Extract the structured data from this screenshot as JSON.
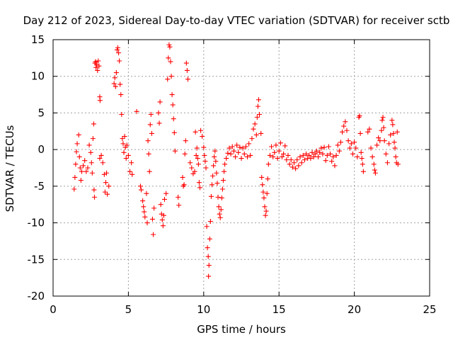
{
  "chart_data": {
    "type": "scatter",
    "title": "Day 212 of 2023, Sidereal Day-to-day VTEC variation (SDTVAR) for receiver sctb",
    "xlabel": "GPS time / hours",
    "ylabel": "SDTVAR / TECUs",
    "xlim": [
      0,
      25
    ],
    "ylim": [
      -20,
      15
    ],
    "xticks": [
      0,
      5,
      10,
      15,
      20,
      25
    ],
    "yticks": [
      -20,
      -15,
      -10,
      -5,
      0,
      5,
      10,
      15
    ],
    "grid": true,
    "marker": "+",
    "color": "#ff0000",
    "series": [
      {
        "name": "SDTVAR",
        "points": [
          [
            1.4,
            -5.4
          ],
          [
            1.45,
            -3.8
          ],
          [
            1.5,
            -2.0
          ],
          [
            1.55,
            -0.3
          ],
          [
            1.6,
            0.8
          ],
          [
            1.7,
            2.0
          ],
          [
            1.75,
            -1.0
          ],
          [
            1.8,
            -2.5
          ],
          [
            1.85,
            -4.2
          ],
          [
            1.9,
            -3.0
          ],
          [
            2.0,
            -2.2
          ],
          [
            2.1,
            -1.5
          ],
          [
            2.2,
            -3.0
          ],
          [
            2.3,
            -2.5
          ],
          [
            2.4,
            0.6
          ],
          [
            2.5,
            -0.4
          ],
          [
            2.55,
            -1.8
          ],
          [
            2.6,
            -3.2
          ],
          [
            2.65,
            1.5
          ],
          [
            2.7,
            3.5
          ],
          [
            2.72,
            -5.5
          ],
          [
            2.75,
            -6.5
          ],
          [
            2.78,
            11.8
          ],
          [
            2.82,
            12.0
          ],
          [
            2.85,
            11.2
          ],
          [
            2.9,
            11.6
          ],
          [
            2.95,
            10.8
          ],
          [
            3.0,
            12.1
          ],
          [
            3.05,
            11.4
          ],
          [
            3.1,
            -1.2
          ],
          [
            3.1,
            7.2
          ],
          [
            3.12,
            6.7
          ],
          [
            3.2,
            -0.8
          ],
          [
            3.3,
            -1.8
          ],
          [
            3.4,
            -3.4
          ],
          [
            3.45,
            -5.8
          ],
          [
            3.5,
            -4.5
          ],
          [
            3.55,
            -3.2
          ],
          [
            3.6,
            -6.1
          ],
          [
            3.7,
            -5.0
          ],
          [
            4.05,
            9.0
          ],
          [
            4.1,
            9.8
          ],
          [
            4.15,
            8.6
          ],
          [
            4.2,
            10.5
          ],
          [
            4.25,
            13.6
          ],
          [
            4.3,
            13.9
          ],
          [
            4.35,
            13.2
          ],
          [
            4.4,
            12.1
          ],
          [
            4.45,
            8.9
          ],
          [
            4.5,
            7.5
          ],
          [
            4.55,
            4.8
          ],
          [
            4.6,
            1.5
          ],
          [
            4.65,
            0.8
          ],
          [
            4.7,
            -0.4
          ],
          [
            4.75,
            1.8
          ],
          [
            4.8,
            0.3
          ],
          [
            4.85,
            -1.2
          ],
          [
            4.9,
            0.6
          ],
          [
            5.0,
            -0.8
          ],
          [
            5.1,
            -3.0
          ],
          [
            5.2,
            -1.8
          ],
          [
            5.25,
            -3.4
          ],
          [
            5.55,
            5.2
          ],
          [
            5.8,
            -5.0
          ],
          [
            5.85,
            -5.5
          ],
          [
            5.95,
            -7.0
          ],
          [
            6.0,
            -7.8
          ],
          [
            6.05,
            -8.5
          ],
          [
            6.1,
            -9.2
          ],
          [
            6.2,
            -6.0
          ],
          [
            6.25,
            -10.0
          ],
          [
            6.3,
            1.2
          ],
          [
            6.35,
            -0.6
          ],
          [
            6.4,
            -3.0
          ],
          [
            6.45,
            3.4
          ],
          [
            6.5,
            4.8
          ],
          [
            6.55,
            2.2
          ],
          [
            6.6,
            -9.5
          ],
          [
            6.65,
            -11.6
          ],
          [
            6.7,
            -8.0
          ],
          [
            7.0,
            5.0
          ],
          [
            7.05,
            3.6
          ],
          [
            7.1,
            6.5
          ],
          [
            7.15,
            -7.5
          ],
          [
            7.2,
            -8.8
          ],
          [
            7.25,
            -9.6
          ],
          [
            7.3,
            -10.4
          ],
          [
            7.35,
            -9.0
          ],
          [
            7.4,
            -6.8
          ],
          [
            7.5,
            -6.0
          ],
          [
            7.6,
            9.6
          ],
          [
            7.65,
            12.5
          ],
          [
            7.7,
            14.3
          ],
          [
            7.75,
            14.0
          ],
          [
            7.8,
            12.0
          ],
          [
            7.85,
            10.0
          ],
          [
            7.9,
            7.5
          ],
          [
            7.95,
            6.1
          ],
          [
            8.0,
            4.2
          ],
          [
            8.05,
            2.3
          ],
          [
            8.1,
            -0.2
          ],
          [
            8.3,
            -6.5
          ],
          [
            8.35,
            -7.6
          ],
          [
            8.6,
            -3.8
          ],
          [
            8.65,
            -5.0
          ],
          [
            8.7,
            -4.8
          ],
          [
            8.75,
            -0.6
          ],
          [
            8.8,
            1.2
          ],
          [
            8.85,
            11.8
          ],
          [
            8.9,
            10.8
          ],
          [
            8.95,
            9.6
          ],
          [
            9.1,
            -1.8
          ],
          [
            9.2,
            -2.5
          ],
          [
            9.3,
            -3.3
          ],
          [
            9.4,
            -3.0
          ],
          [
            9.45,
            2.4
          ],
          [
            9.5,
            -0.8
          ],
          [
            9.55,
            0.2
          ],
          [
            9.6,
            -1.2
          ],
          [
            9.65,
            -2.0
          ],
          [
            9.7,
            -4.5
          ],
          [
            9.75,
            -5.2
          ],
          [
            9.8,
            2.6
          ],
          [
            9.9,
            1.8
          ],
          [
            10.0,
            0.3
          ],
          [
            10.05,
            -0.8
          ],
          [
            10.1,
            -1.6
          ],
          [
            10.15,
            -2.5
          ],
          [
            10.2,
            -10.5
          ],
          [
            10.25,
            -13.4
          ],
          [
            10.3,
            -14.6
          ],
          [
            10.32,
            -17.3
          ],
          [
            10.35,
            -15.8
          ],
          [
            10.4,
            -12.2
          ],
          [
            10.45,
            -9.8
          ],
          [
            10.5,
            -6.4
          ],
          [
            10.55,
            -4.8
          ],
          [
            10.6,
            -3.6
          ],
          [
            10.65,
            -2.2
          ],
          [
            10.7,
            -1.0
          ],
          [
            10.75,
            -0.2
          ],
          [
            10.8,
            -1.6
          ],
          [
            10.85,
            -3.2
          ],
          [
            10.9,
            -4.6
          ],
          [
            10.95,
            -6.5
          ],
          [
            11.0,
            -7.8
          ],
          [
            11.05,
            -8.8
          ],
          [
            11.1,
            -9.3
          ],
          [
            11.15,
            -8.2
          ],
          [
            11.2,
            -6.6
          ],
          [
            11.25,
            -5.4
          ],
          [
            11.3,
            -4.2
          ],
          [
            11.35,
            -3.0
          ],
          [
            11.4,
            -2.0
          ],
          [
            11.5,
            -1.2
          ],
          [
            11.6,
            -0.5
          ],
          [
            11.7,
            0.2
          ],
          [
            11.8,
            -0.6
          ],
          [
            11.9,
            0.4
          ],
          [
            12.0,
            -0.2
          ],
          [
            12.1,
            -1.0
          ],
          [
            12.2,
            0.6
          ],
          [
            12.3,
            -0.4
          ],
          [
            12.4,
            0.3
          ],
          [
            12.5,
            -1.2
          ],
          [
            12.6,
            0.2
          ],
          [
            12.7,
            -0.6
          ],
          [
            12.8,
            0.4
          ],
          [
            12.9,
            -1.0
          ],
          [
            13.0,
            0.8
          ],
          [
            13.1,
            -0.8
          ],
          [
            13.2,
            1.5
          ],
          [
            13.3,
            2.8
          ],
          [
            13.4,
            3.5
          ],
          [
            13.5,
            2.0
          ],
          [
            13.55,
            4.4
          ],
          [
            13.6,
            5.9
          ],
          [
            13.65,
            6.8
          ],
          [
            13.7,
            4.8
          ],
          [
            13.8,
            2.2
          ],
          [
            13.85,
            -3.8
          ],
          [
            13.9,
            -4.8
          ],
          [
            13.95,
            -5.8
          ],
          [
            14.0,
            -6.6
          ],
          [
            14.05,
            -7.8
          ],
          [
            14.1,
            -9.0
          ],
          [
            14.15,
            -8.4
          ],
          [
            14.2,
            -6.0
          ],
          [
            14.25,
            -4.0
          ],
          [
            14.3,
            -2.0
          ],
          [
            14.4,
            -0.8
          ],
          [
            14.5,
            0.4
          ],
          [
            14.6,
            -1.0
          ],
          [
            14.7,
            -0.4
          ],
          [
            14.8,
            0.6
          ],
          [
            14.9,
            -1.2
          ],
          [
            15.0,
            -0.2
          ],
          [
            15.1,
            0.9
          ],
          [
            15.2,
            -1.0
          ],
          [
            15.3,
            -0.6
          ],
          [
            15.4,
            0.5
          ],
          [
            15.5,
            -1.4
          ],
          [
            15.6,
            -0.8
          ],
          [
            15.7,
            -2.0
          ],
          [
            15.8,
            -1.4
          ],
          [
            15.9,
            -2.4
          ],
          [
            16.0,
            -1.8
          ],
          [
            16.1,
            -2.6
          ],
          [
            16.2,
            -1.4
          ],
          [
            16.3,
            -2.2
          ],
          [
            16.4,
            -1.0
          ],
          [
            16.5,
            -1.8
          ],
          [
            16.6,
            -0.8
          ],
          [
            16.7,
            -1.4
          ],
          [
            16.8,
            -0.6
          ],
          [
            16.9,
            -1.2
          ],
          [
            17.0,
            -0.8
          ],
          [
            17.1,
            -1.2
          ],
          [
            17.2,
            -0.4
          ],
          [
            17.3,
            -1.0
          ],
          [
            17.4,
            -0.6
          ],
          [
            17.5,
            -0.2
          ],
          [
            17.6,
            -1.0
          ],
          [
            17.7,
            -0.4
          ],
          [
            17.8,
            0.2
          ],
          [
            17.9,
            -0.6
          ],
          [
            18.0,
            0.3
          ],
          [
            18.1,
            -1.5
          ],
          [
            18.2,
            -0.8
          ],
          [
            18.3,
            0.4
          ],
          [
            18.4,
            -0.6
          ],
          [
            18.5,
            -1.6
          ],
          [
            18.6,
            -1.0
          ],
          [
            18.7,
            -2.2
          ],
          [
            18.8,
            -0.8
          ],
          [
            18.9,
            0.6
          ],
          [
            19.0,
            -0.2
          ],
          [
            19.1,
            1.0
          ],
          [
            19.2,
            2.4
          ],
          [
            19.3,
            3.2
          ],
          [
            19.4,
            3.8
          ],
          [
            19.5,
            2.6
          ],
          [
            19.6,
            1.2
          ],
          [
            19.7,
            0.2
          ],
          [
            19.8,
            0.8
          ],
          [
            19.9,
            -0.6
          ],
          [
            20.0,
            1.0
          ],
          [
            20.1,
            0.2
          ],
          [
            20.2,
            -1.0
          ],
          [
            20.3,
            4.4
          ],
          [
            20.35,
            4.6
          ],
          [
            20.4,
            2.2
          ],
          [
            20.45,
            -0.4
          ],
          [
            20.5,
            -1.2
          ],
          [
            20.55,
            -2.0
          ],
          [
            20.6,
            -3.0
          ],
          [
            20.9,
            2.4
          ],
          [
            21.0,
            2.8
          ],
          [
            21.1,
            0.2
          ],
          [
            21.2,
            -1.0
          ],
          [
            21.3,
            -2.0
          ],
          [
            21.35,
            -2.8
          ],
          [
            21.4,
            -3.2
          ],
          [
            21.5,
            0.6
          ],
          [
            21.6,
            1.6
          ],
          [
            21.7,
            1.2
          ],
          [
            21.8,
            2.6
          ],
          [
            21.85,
            4.0
          ],
          [
            21.9,
            4.4
          ],
          [
            21.95,
            3.0
          ],
          [
            22.0,
            1.2
          ],
          [
            22.1,
            -0.6
          ],
          [
            22.2,
            -1.8
          ],
          [
            22.3,
            0.8
          ],
          [
            22.4,
            2.0
          ],
          [
            22.5,
            4.0
          ],
          [
            22.55,
            3.4
          ],
          [
            22.6,
            2.2
          ],
          [
            22.65,
            1.0
          ],
          [
            22.7,
            0.2
          ],
          [
            22.75,
            -1.0
          ],
          [
            22.8,
            -1.8
          ],
          [
            22.85,
            2.4
          ],
          [
            22.9,
            -2.0
          ]
        ]
      }
    ]
  }
}
